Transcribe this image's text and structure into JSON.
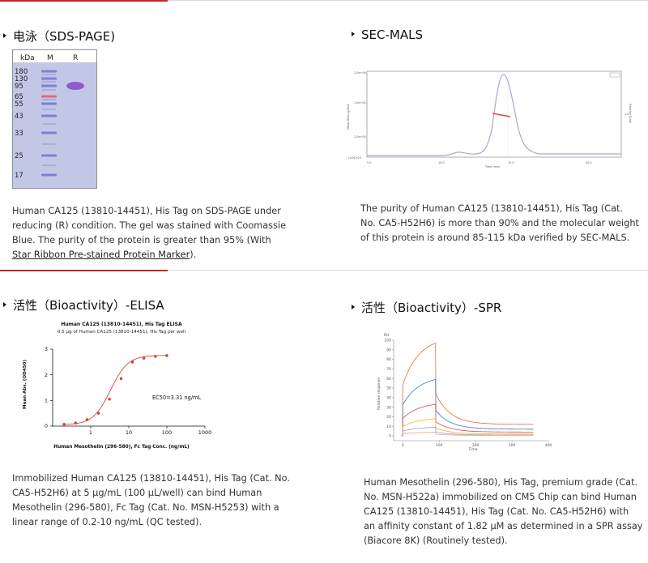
{
  "sections": {
    "sds": {
      "title": "电泳（SDS-PAGE)",
      "gel": {
        "unit_label": "kDa",
        "lane_m": "M",
        "lane_r": "R",
        "markers": [
          "180",
          "130",
          "95",
          "65",
          "55",
          "43",
          "33",
          "25",
          "17"
        ]
      },
      "desc_lines": [
        "Human CA125 (13810-14451), His Tag on SDS-PAGE under",
        "reducing (R) condition. The gel was stained with Coomassie",
        "Blue. The purity of the protein is greater than 95% (With"
      ],
      "desc_link": "Star Ribbon Pre-stained Protein Marker",
      "desc_tail": ")."
    },
    "secmals": {
      "title": "SEC-MALS",
      "desc_lines": [
        "The purity of Human CA125 (13810-14451), His Tag (Cat.",
        "No. CA5-H52H6) is more than 90% and the molecular weight",
        "of this protein is around 85-115 kDa verified by SEC-MALS."
      ]
    },
    "elisa": {
      "title": "活性（Bioactivity）-ELISA",
      "desc_lines": [
        "Immobilized Human CA125 (13810-14451), His Tag (Cat. No.",
        "CA5-H52H6) at 5 μg/mL (100 μL/well) can bind Human",
        "Mesothelin (296-580), Fc Tag (Cat. No. MSN-H5253) with a",
        "linear range of 0.2-10 ng/mL (QC tested)."
      ]
    },
    "spr": {
      "title": "活性（Bioactivity）-SPR",
      "desc_lines": [
        "Human Mesothelin (296-580), His Tag, premium grade (Cat.",
        "No. MSN-H522a) immobilized on CM5 Chip can bind Human",
        "CA125 (13810-14451), His Tag (Cat. No. CA5-H52H6) with",
        "an affinity constant of 1.82 μM as determined in a SPR assay",
        "(Biacore 8K) (Routinely tested)."
      ]
    }
  },
  "chart_data": [
    {
      "type": "line",
      "title": "Human CA125 (13810-14451), His Tag ELISA",
      "subtitle": "0.5 μg of Human CA125 (13810-14451), His Tag per well",
      "xlabel": "Human Mesothelin (296-580), Fc Tag Conc. (ng/mL)",
      "ylabel": "Mean Abs. (OD450)",
      "xscale": "log",
      "xticks": [
        "1",
        "10",
        "100",
        "1000"
      ],
      "yticks": [
        "0",
        "1",
        "2",
        "3"
      ],
      "ylim": [
        0,
        3
      ],
      "annotation": "EC50=3.31 ng/mL",
      "series": [
        {
          "x": [
            0.2,
            0.4,
            0.8,
            1.6,
            3.1,
            6.3,
            12.5,
            25,
            50,
            100
          ],
          "y": [
            0.07,
            0.12,
            0.25,
            0.5,
            1.05,
            1.85,
            2.5,
            2.65,
            2.72,
            2.75
          ]
        }
      ],
      "color": "#d9453a"
    },
    {
      "type": "line",
      "xlabel": "Time",
      "ylabel": "Relative response",
      "yunit": "RU",
      "xticks": [
        "0",
        "100",
        "200",
        "300",
        "400"
      ],
      "yticks": [
        "0",
        "10",
        "20",
        "30",
        "40",
        "50",
        "60",
        "70",
        "80",
        "90",
        "100"
      ],
      "xlim": [
        -25,
        400
      ],
      "ylim": [
        -5,
        100
      ],
      "series": [
        {
          "name": "",
          "color": "#e8663d",
          "assoc_max": 97,
          "dissoc_end": 12
        },
        {
          "name": "",
          "color": "#3c74c4",
          "assoc_max": 59,
          "dissoc_end": 7
        },
        {
          "name": "",
          "color": "#d94b4b",
          "assoc_max": 33,
          "dissoc_end": 4
        },
        {
          "name": "",
          "color": "#f0b632",
          "assoc_max": 18,
          "dissoc_end": 2
        },
        {
          "name": "",
          "color": "#8aa6d8",
          "assoc_max": 9,
          "dissoc_end": 1
        },
        {
          "name": "",
          "color": "#f4a07a",
          "assoc_max": 4,
          "dissoc_end": 0.5
        }
      ]
    }
  ]
}
